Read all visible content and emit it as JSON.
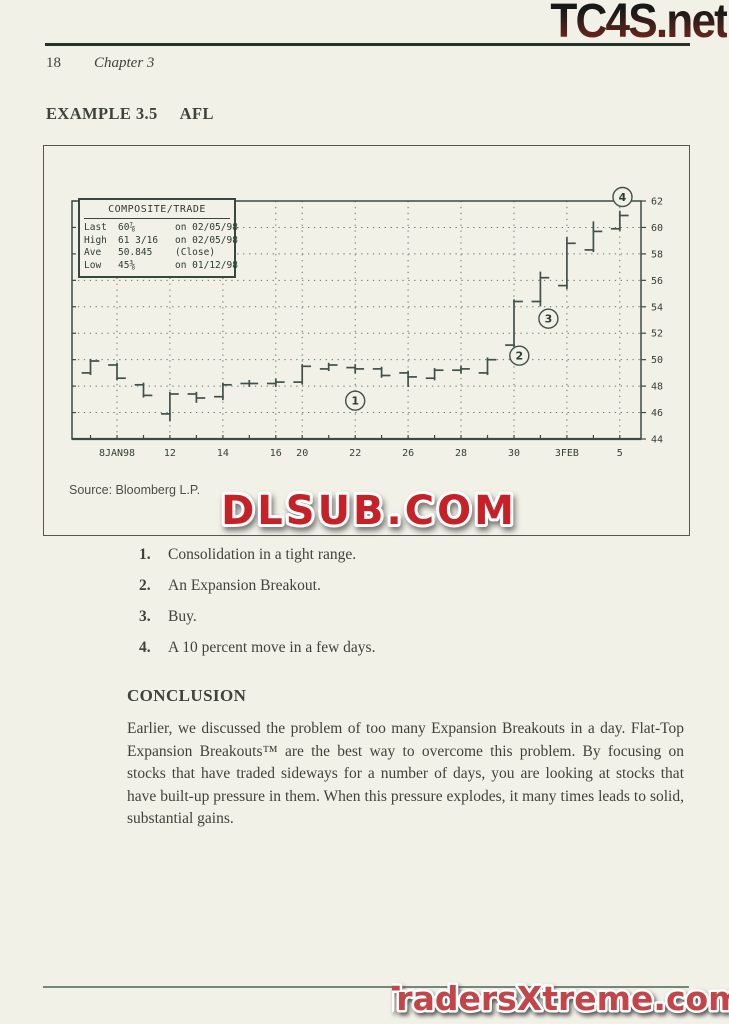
{
  "watermarks": {
    "top": "TC4S.net",
    "middle": "DLSUB.COM",
    "bottom": "TradersXtreme.com"
  },
  "header": {
    "page_number": "18",
    "chapter": "Chapter 3"
  },
  "example": {
    "label": "EXAMPLE 3.5",
    "ticker": "AFL"
  },
  "figure": {
    "source": "Source: Bloomberg L.P.",
    "legend": {
      "title": "COMPOSITE/TRADE",
      "rows": [
        {
          "label": "Last",
          "value": "60⅞",
          "note": "on 02/05/98"
        },
        {
          "label": "High",
          "value": "61 3/16",
          "note": "on 02/05/98"
        },
        {
          "label": "Ave",
          "value": "50.845",
          "note": "(Close)"
        },
        {
          "label": "Low",
          "value": "45⅜",
          "note": "on 01/12/98"
        }
      ]
    }
  },
  "chart_data": {
    "type": "bar",
    "subtype": "ohlc-open-close-ticks",
    "title": "COMPOSITE/TRADE",
    "ylabel": "",
    "xlabel": "",
    "ylim": [
      44,
      62
    ],
    "ytick_step": 2,
    "grid": "dotted",
    "bars": [
      {
        "date": "Jan 7",
        "open": 49.0,
        "high": 50.0,
        "low": 48.9,
        "close": 49.9
      },
      {
        "date": "Jan 8",
        "open": 49.6,
        "high": 49.7,
        "low": 48.5,
        "close": 48.6
      },
      {
        "date": "Jan 9",
        "open": 48.1,
        "high": 48.2,
        "low": 47.2,
        "close": 47.3
      },
      {
        "date": "Jan 12",
        "open": 45.9,
        "high": 47.5,
        "low": 45.4,
        "close": 47.4
      },
      {
        "date": "Jan 13",
        "open": 47.4,
        "high": 47.5,
        "low": 46.8,
        "close": 47.1
      },
      {
        "date": "Jan 14",
        "open": 47.2,
        "high": 48.2,
        "low": 47.0,
        "close": 48.1
      },
      {
        "date": "Jan 15",
        "open": 48.2,
        "high": 48.4,
        "low": 48.0,
        "close": 48.2
      },
      {
        "date": "Jan 16",
        "open": 48.2,
        "high": 48.5,
        "low": 48.0,
        "close": 48.3
      },
      {
        "date": "Jan 20",
        "open": 48.3,
        "high": 49.6,
        "low": 48.2,
        "close": 49.5
      },
      {
        "date": "Jan 21",
        "open": 49.3,
        "high": 49.7,
        "low": 49.2,
        "close": 49.6
      },
      {
        "date": "Jan 22",
        "open": 49.4,
        "high": 49.6,
        "low": 49.0,
        "close": 49.3
      },
      {
        "date": "Jan 23",
        "open": 49.3,
        "high": 49.4,
        "low": 48.7,
        "close": 48.8
      },
      {
        "date": "Jan 26",
        "open": 49.0,
        "high": 49.1,
        "low": 48.0,
        "close": 48.7
      },
      {
        "date": "Jan 27",
        "open": 48.6,
        "high": 49.3,
        "low": 48.5,
        "close": 49.2
      },
      {
        "date": "Jan 28",
        "open": 49.2,
        "high": 49.5,
        "low": 49.0,
        "close": 49.3
      },
      {
        "date": "Jan 29",
        "open": 49.0,
        "high": 50.1,
        "low": 48.9,
        "close": 50.0
      },
      {
        "date": "Jan 30",
        "open": 51.1,
        "high": 54.5,
        "low": 51.0,
        "close": 54.4
      },
      {
        "date": "Feb 2",
        "open": 54.4,
        "high": 56.6,
        "low": 54.1,
        "close": 56.2
      },
      {
        "date": "Feb 3",
        "open": 55.6,
        "high": 59.2,
        "low": 55.4,
        "close": 58.8
      },
      {
        "date": "Feb 4",
        "open": 58.3,
        "high": 60.4,
        "low": 58.2,
        "close": 59.7
      },
      {
        "date": "Feb 5",
        "open": 59.9,
        "high": 61.2,
        "low": 59.8,
        "close": 60.9
      }
    ],
    "xticks": [
      {
        "label": "8JAN98",
        "index": 1
      },
      {
        "label": "12",
        "index": 3
      },
      {
        "label": "14",
        "index": 5
      },
      {
        "label": "16",
        "index": 7
      },
      {
        "label": "20",
        "index": 8
      },
      {
        "label": "22",
        "index": 10
      },
      {
        "label": "26",
        "index": 12
      },
      {
        "label": "28",
        "index": 14
      },
      {
        "label": "30",
        "index": 16
      },
      {
        "label": "3FEB",
        "index": 18
      },
      {
        "label": "5",
        "index": 20
      }
    ],
    "annotations": [
      {
        "label": "1",
        "index": 10,
        "value": 46.9
      },
      {
        "label": "2",
        "index": 16.2,
        "value": 50.3
      },
      {
        "label": "3",
        "index": 17.3,
        "value": 53.1
      },
      {
        "label": "4",
        "index": 20.1,
        "value": 62.3
      }
    ]
  },
  "notes": [
    {
      "num": "1.",
      "text": "Consolidation in a tight range."
    },
    {
      "num": "2.",
      "text": "An Expansion Breakout."
    },
    {
      "num": "3.",
      "text": "Buy."
    },
    {
      "num": "4.",
      "text": "A 10 percent move in a few days."
    }
  ],
  "conclusion": {
    "heading": "CONCLUSION",
    "body": "Earlier, we discussed the problem of too many Expansion Breakouts in a day. Flat-Top Expansion Breakouts™ are the best way to overcome this problem. By focusing on stocks that have traded sideways for a number of days, you are looking at stocks that have built-up pressure in them. When this pressure explodes, it many times leads to solid, substantial gains."
  },
  "colors": {
    "paper": "#f2f1e7",
    "body_ink": "#3e423c",
    "chart_ink": "#42504c",
    "watermark_red": "#c62127",
    "bottom_watermark_red": "#c2454a",
    "logo_gradient_bottom": "#8c231c",
    "rule_dark_green": "#24332c"
  }
}
